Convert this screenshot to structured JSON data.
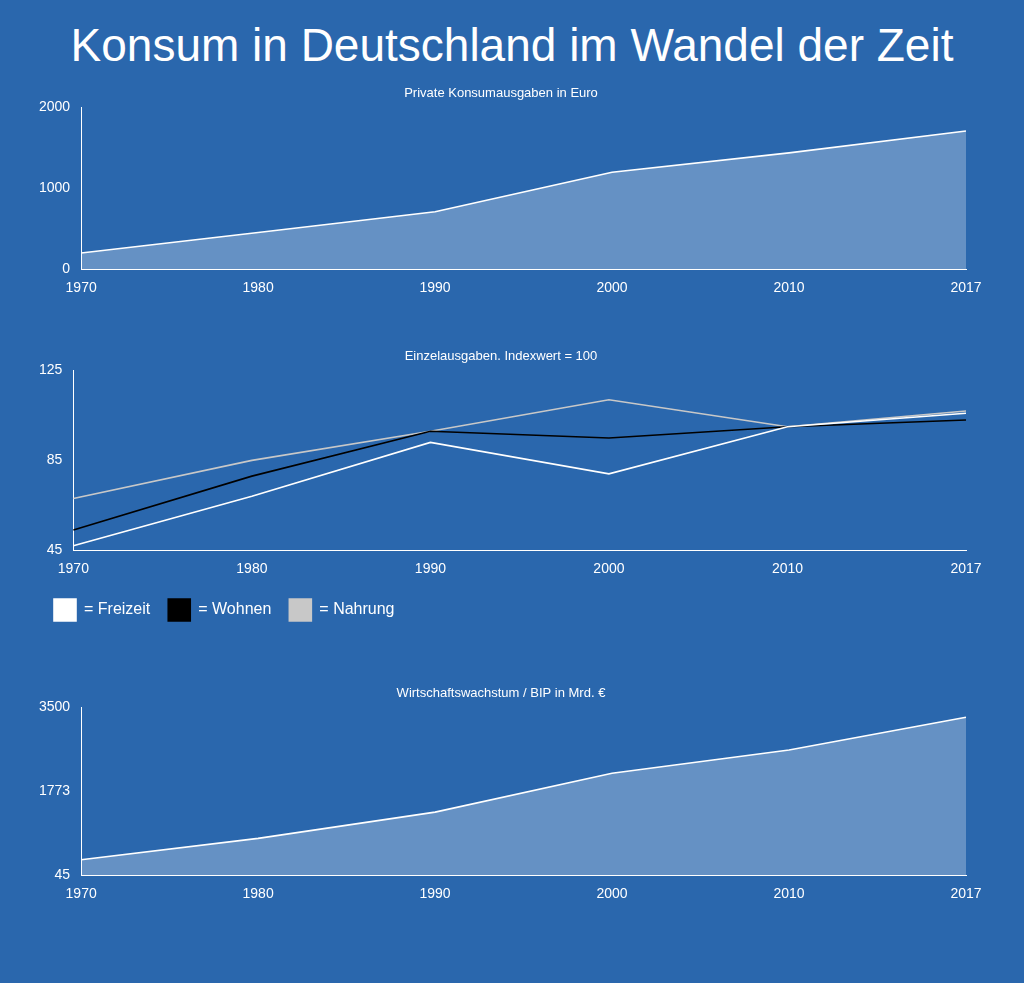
{
  "title": "Konsum in Deutschland im Wandel der Zeit",
  "chart_data": [
    {
      "type": "area",
      "title": "Private Konsumausgaben in Euro",
      "categories": [
        "1970",
        "1980",
        "1990",
        "2000",
        "2010",
        "2017"
      ],
      "values": [
        200,
        455,
        710,
        1200,
        1440,
        1710
      ],
      "color": "#ffffff",
      "ylim": [
        0,
        2000
      ],
      "yticks": [
        0,
        1000,
        2000
      ],
      "grid": false
    },
    {
      "type": "line",
      "title": "Einzelausgaben. Indexwert = 100",
      "categories": [
        "1970",
        "1980",
        "1990",
        "2000",
        "2010",
        "2017"
      ],
      "series": [
        {
          "name": "= Freizeit",
          "color": "#ffffff",
          "values": [
            47,
            69,
            93,
            79,
            100,
            106
          ]
        },
        {
          "name": "= Wohnen",
          "color": "#000000",
          "values": [
            54,
            78,
            98,
            95,
            100,
            103
          ]
        },
        {
          "name": "= Nahrung",
          "color": "#c8c8c8",
          "values": [
            68,
            85,
            98,
            112,
            100,
            107
          ]
        }
      ],
      "ylim": [
        45,
        125
      ],
      "yticks": [
        45,
        85,
        125
      ],
      "grid": false,
      "legend": "bottom"
    },
    {
      "type": "area",
      "title": "Wirtschaftswachstum / BIP in Mrd. €",
      "categories": [
        "1970",
        "1980",
        "1990",
        "2000",
        "2010",
        "2017"
      ],
      "values": [
        365,
        805,
        1345,
        2145,
        2625,
        3300
      ],
      "color": "#ffffff",
      "ylim": [
        45,
        3500
      ],
      "yticks": [
        45,
        1773,
        3500
      ],
      "grid": false
    }
  ]
}
